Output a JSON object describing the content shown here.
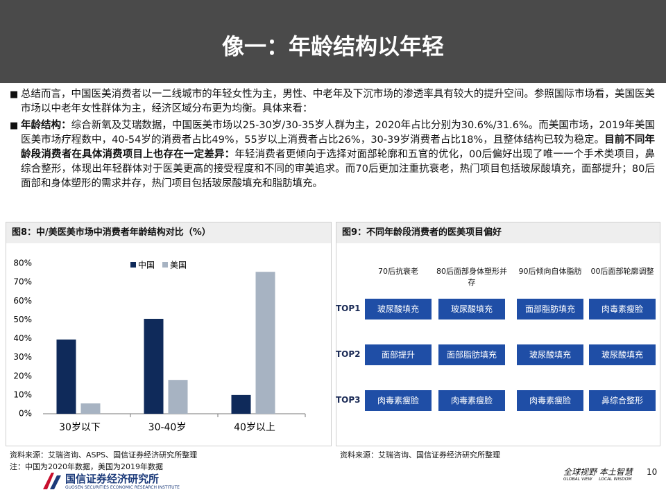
{
  "header": {
    "title": "像一：年龄结构以年轻"
  },
  "bullets": [
    {
      "parts": [
        {
          "text": "总结而言，中国医美消费者以一二线城市的年轻女性为主，男性、中老年及下沉市场的渗透率具有较大的提升空间。参照国际市场看，美国医美市场以中老年女性群体为主，经济区域分布更为均衡。具体来看：",
          "bold": false
        }
      ]
    },
    {
      "parts": [
        {
          "text": "年龄结构：",
          "bold": true
        },
        {
          "text": "综合新氧及艾瑞数据，中国医美市场以25-30岁/30-35岁人群为主，2020年占比分别为30.6%/31.6%。而美国市场，2019年美国医美市场疗程数中，40-54岁的消费者占比49%，55岁以上消费者占比26%，30-39岁消费者占比18%，且整体结构已较为稳定。",
          "bold": false
        },
        {
          "text": "目前不同年龄段消费者在具体消费项目上也存在一定差异：",
          "bold": true
        },
        {
          "text": "年轻消费者更倾向于选择对面部轮廓和五官的优化，00后偏好出现了唯一一个手术类项目，鼻综合整形，体现出年轻群体对于医美更高的接受程度和不同的审美追求。而70后更加注重抗衰老，热门项目包括玻尿酸填充，面部提升；80后面部和身体塑形的需求并存，热门项目包括玻尿酸填充和脂肪填充。",
          "bold": false
        }
      ]
    }
  ],
  "figure8": {
    "title": "图8：中/美医美市场中消费者年龄结构对比（%）",
    "source": "资料来源：艾瑞咨询、ASPS、国信证券经济研究所整理",
    "note": "注：中国为2020年数据，美国为2019年数据"
  },
  "chart_data": {
    "type": "bar",
    "categories": [
      "30岁以下",
      "30-40岁",
      "40岁以上"
    ],
    "series": [
      {
        "name": "中国",
        "color": "#0f2a5a",
        "values": [
          39.5,
          50.5,
          10
        ]
      },
      {
        "name": "美国",
        "color": "#a7b3c2",
        "values": [
          5.5,
          18,
          75.5
        ]
      }
    ],
    "ylim": [
      0,
      80
    ],
    "yticks": [
      {
        "value": 0,
        "label": "0%"
      },
      {
        "value": 10,
        "label": "10%"
      },
      {
        "value": 20,
        "label": "20%"
      },
      {
        "value": 30,
        "label": "30%"
      },
      {
        "value": 40,
        "label": "40%"
      },
      {
        "value": 50,
        "label": "50%"
      },
      {
        "value": 60,
        "label": "60%"
      },
      {
        "value": 70,
        "label": "70%"
      },
      {
        "value": 80,
        "label": "80%"
      }
    ],
    "grid": false,
    "legend": "top"
  },
  "figure9": {
    "title": "图9：不同年龄段消费者的医美项目偏好",
    "source": "资料来源：艾瑞咨询、国信证券经济研究所整理",
    "columns": [
      "70后抗衰老",
      "80后面部身体塑形并存",
      "90后倾向自体脂肪",
      "00后面部轮廓调整"
    ],
    "rows": [
      {
        "label": "TOP1",
        "cells": [
          "玻尿酸填充",
          "玻尿酸填充",
          "面部脂肪填充",
          "肉毒素瘦脸"
        ]
      },
      {
        "label": "TOP2",
        "cells": [
          "面部提升",
          "面部脂肪填充",
          "玻尿酸填充",
          "玻尿酸填充"
        ]
      },
      {
        "label": "TOP3",
        "cells": [
          "肉毒素瘦脸",
          "肉毒素瘦脸",
          "肉毒素瘦脸",
          "鼻综合整形"
        ]
      }
    ]
  },
  "footer": {
    "company": "国信证券经济研究所",
    "company_en": "GUOSEN SECURITIES ECONOMIC RESEARCH INSTITUTE",
    "slogan": "全球视野 本土智慧",
    "slogan_en": "GLOBAL VIEW     LOCAL WISDOM",
    "page": "10"
  }
}
